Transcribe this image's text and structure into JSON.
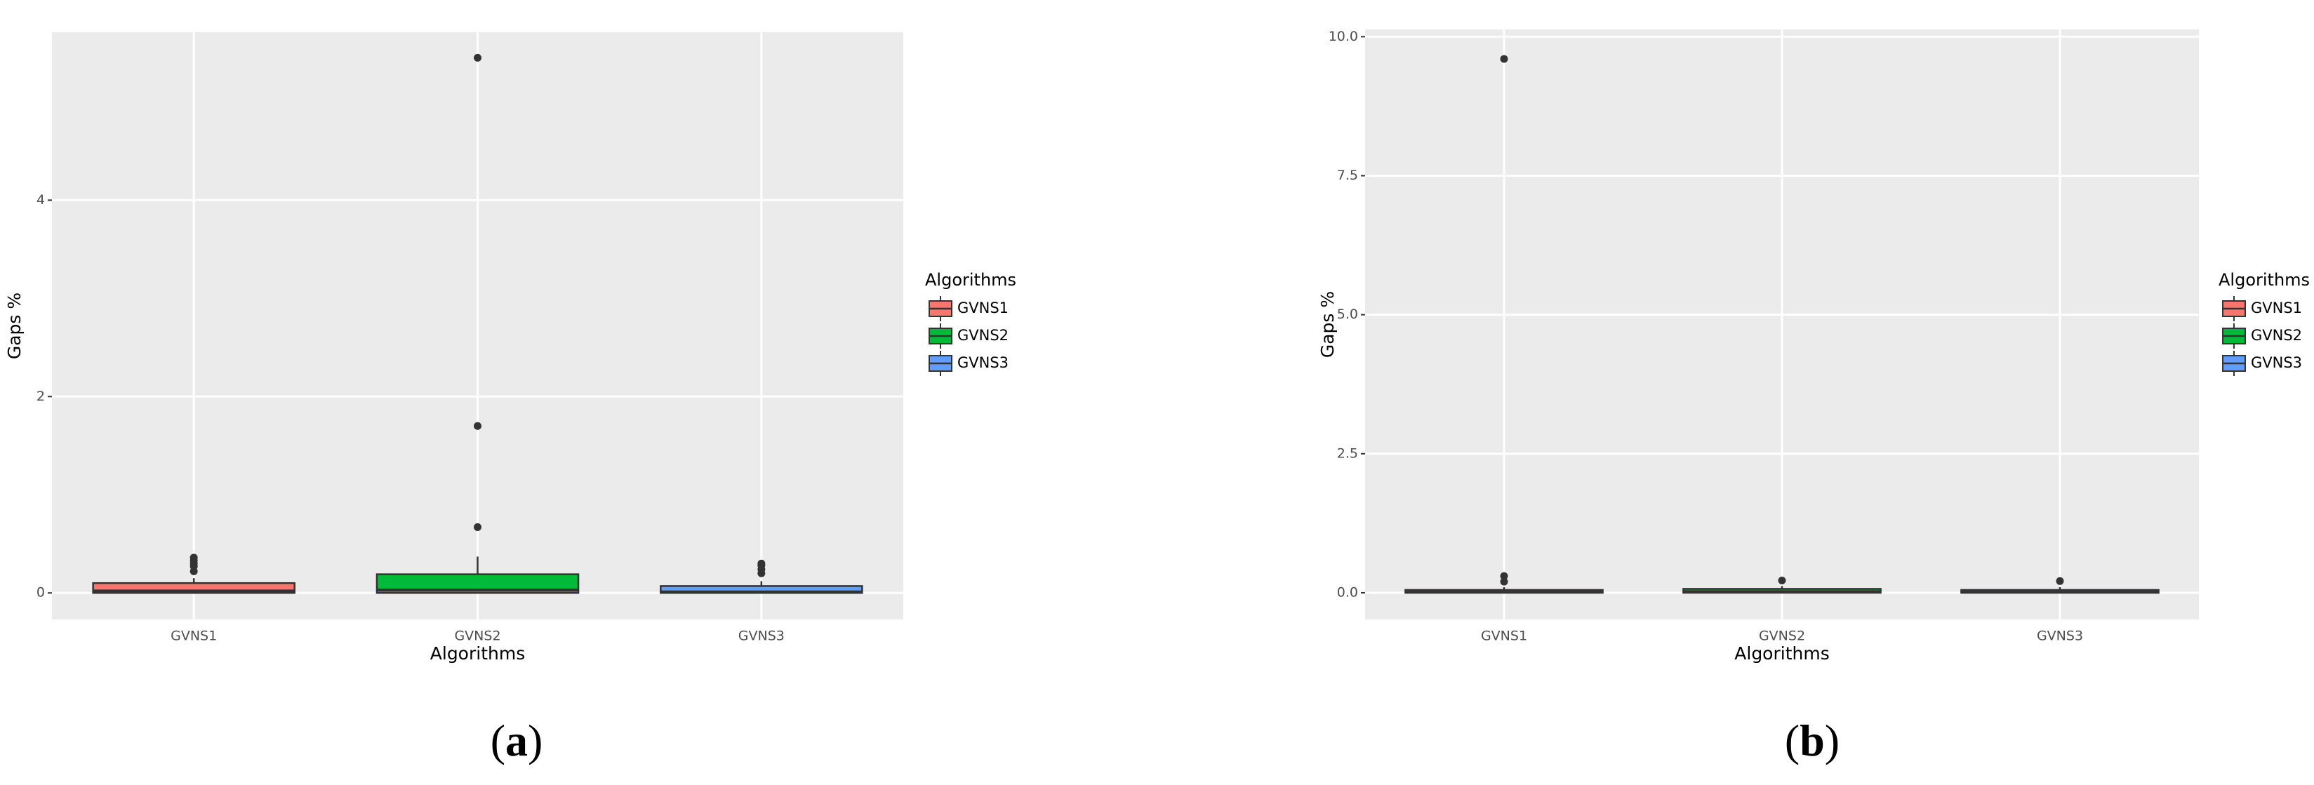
{
  "chart_data": [
    {
      "type": "box",
      "caption": "(a)",
      "x_label": "Algorithms",
      "y_label": "Gaps %",
      "legend_title": "Algorithms",
      "categories": [
        "GVNS1",
        "GVNS2",
        "GVNS3"
      ],
      "ylim": [
        -0.27,
        5.71
      ],
      "yticks": [
        0,
        2,
        4
      ],
      "grid": true,
      "boxes": [
        {
          "name": "GVNS1",
          "color": "#F8766D",
          "whisker_low": 0,
          "q1": 0,
          "median": 0.02,
          "q3": 0.1,
          "whisker_high": 0.15,
          "outliers": [
            0.22,
            0.27,
            0.3,
            0.33,
            0.36
          ]
        },
        {
          "name": "GVNS2",
          "color": "#00BA38",
          "whisker_low": 0,
          "q1": 0,
          "median": 0.03,
          "q3": 0.19,
          "whisker_high": 0.37,
          "outliers": [
            0.67,
            1.7,
            5.45
          ]
        },
        {
          "name": "GVNS3",
          "color": "#619CFF",
          "whisker_low": 0,
          "q1": 0,
          "median": 0.01,
          "q3": 0.07,
          "whisker_high": 0.12,
          "outliers": [
            0.2,
            0.24,
            0.28,
            0.3
          ]
        }
      ]
    },
    {
      "type": "box",
      "caption": "(b)",
      "x_label": "Algorithms",
      "y_label": "Gaps %",
      "legend_title": "Algorithms",
      "categories": [
        "GVNS1",
        "GVNS2",
        "GVNS3"
      ],
      "ylim": [
        -0.48,
        10.13
      ],
      "yticks": [
        {
          "value": 0,
          "label": "0.0"
        },
        {
          "value": 2.5,
          "label": "2.5"
        },
        {
          "value": 5,
          "label": "5.0"
        },
        {
          "value": 7.5,
          "label": "7.5"
        },
        {
          "value": 10,
          "label": "10.0"
        }
      ],
      "grid": true,
      "boxes": [
        {
          "name": "GVNS1",
          "color": "#F8766D",
          "whisker_low": 0,
          "q1": 0,
          "median": 0.01,
          "q3": 0.05,
          "whisker_high": 0.1,
          "outliers": [
            0.2,
            0.3,
            9.6
          ]
        },
        {
          "name": "GVNS2",
          "color": "#00BA38",
          "whisker_low": 0,
          "q1": 0,
          "median": 0.02,
          "q3": 0.07,
          "whisker_high": 0.12,
          "outliers": [
            0.22
          ]
        },
        {
          "name": "GVNS3",
          "color": "#619CFF",
          "whisker_low": 0,
          "q1": 0,
          "median": 0.01,
          "q3": 0.05,
          "whisker_high": 0.1,
          "outliers": [
            0.21
          ]
        }
      ]
    }
  ]
}
